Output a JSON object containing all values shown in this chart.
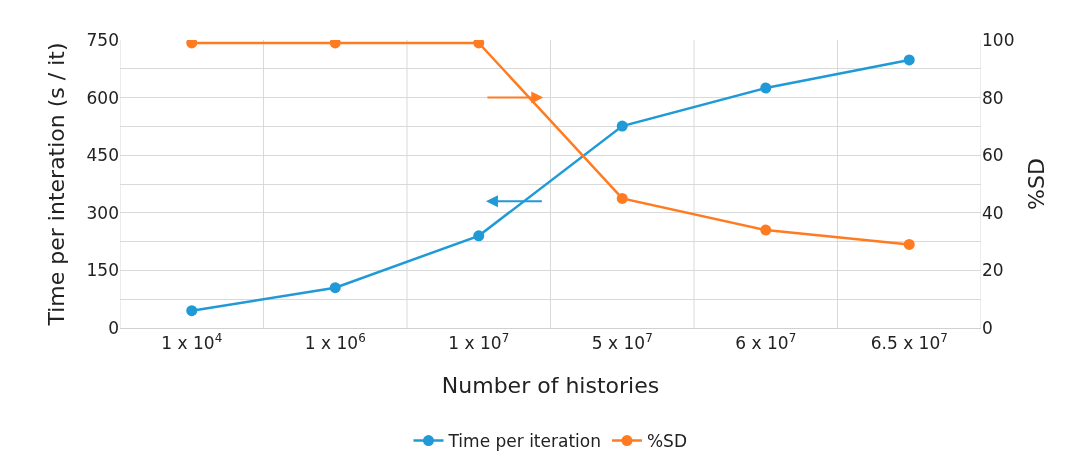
{
  "chart_data": {
    "type": "line",
    "xlabel": "Number of histories",
    "ylabel": "Time per interation (s / it)",
    "y2label": "%SD",
    "categories": [
      "1 x 10$^{4}$",
      "1 x 10$^{6}$",
      "1 x 10$^{7}$",
      "5 x 10$^{7}$",
      "6 x 10$^{7}$",
      "6.5 x 10$^{7}$"
    ],
    "series": [
      {
        "name": "Time per iteration",
        "color": "#1f9ad6",
        "values": [
          45,
          105,
          240,
          526,
          625,
          698
        ]
      },
      {
        "name": "%SD",
        "color": "#ff7b22",
        "axis": "y2",
        "values": [
          99,
          99,
          99,
          45,
          34,
          29
        ]
      }
    ],
    "ylim": [
      0,
      750
    ],
    "yticks": [
      0,
      {
        "value": 75,
        "label": null
      },
      150,
      {
        "value": 225,
        "label": null
      },
      300,
      {
        "value": 375,
        "label": null
      },
      450,
      {
        "value": 525,
        "label": null
      },
      600,
      {
        "value": 675,
        "label": null
      },
      750
    ],
    "y2lim": [
      0,
      100
    ],
    "y2ticks": [
      0,
      20,
      40,
      60,
      80,
      100
    ],
    "grid": true,
    "legend": "bottom",
    "marker": "circle",
    "line_style": "solid"
  }
}
